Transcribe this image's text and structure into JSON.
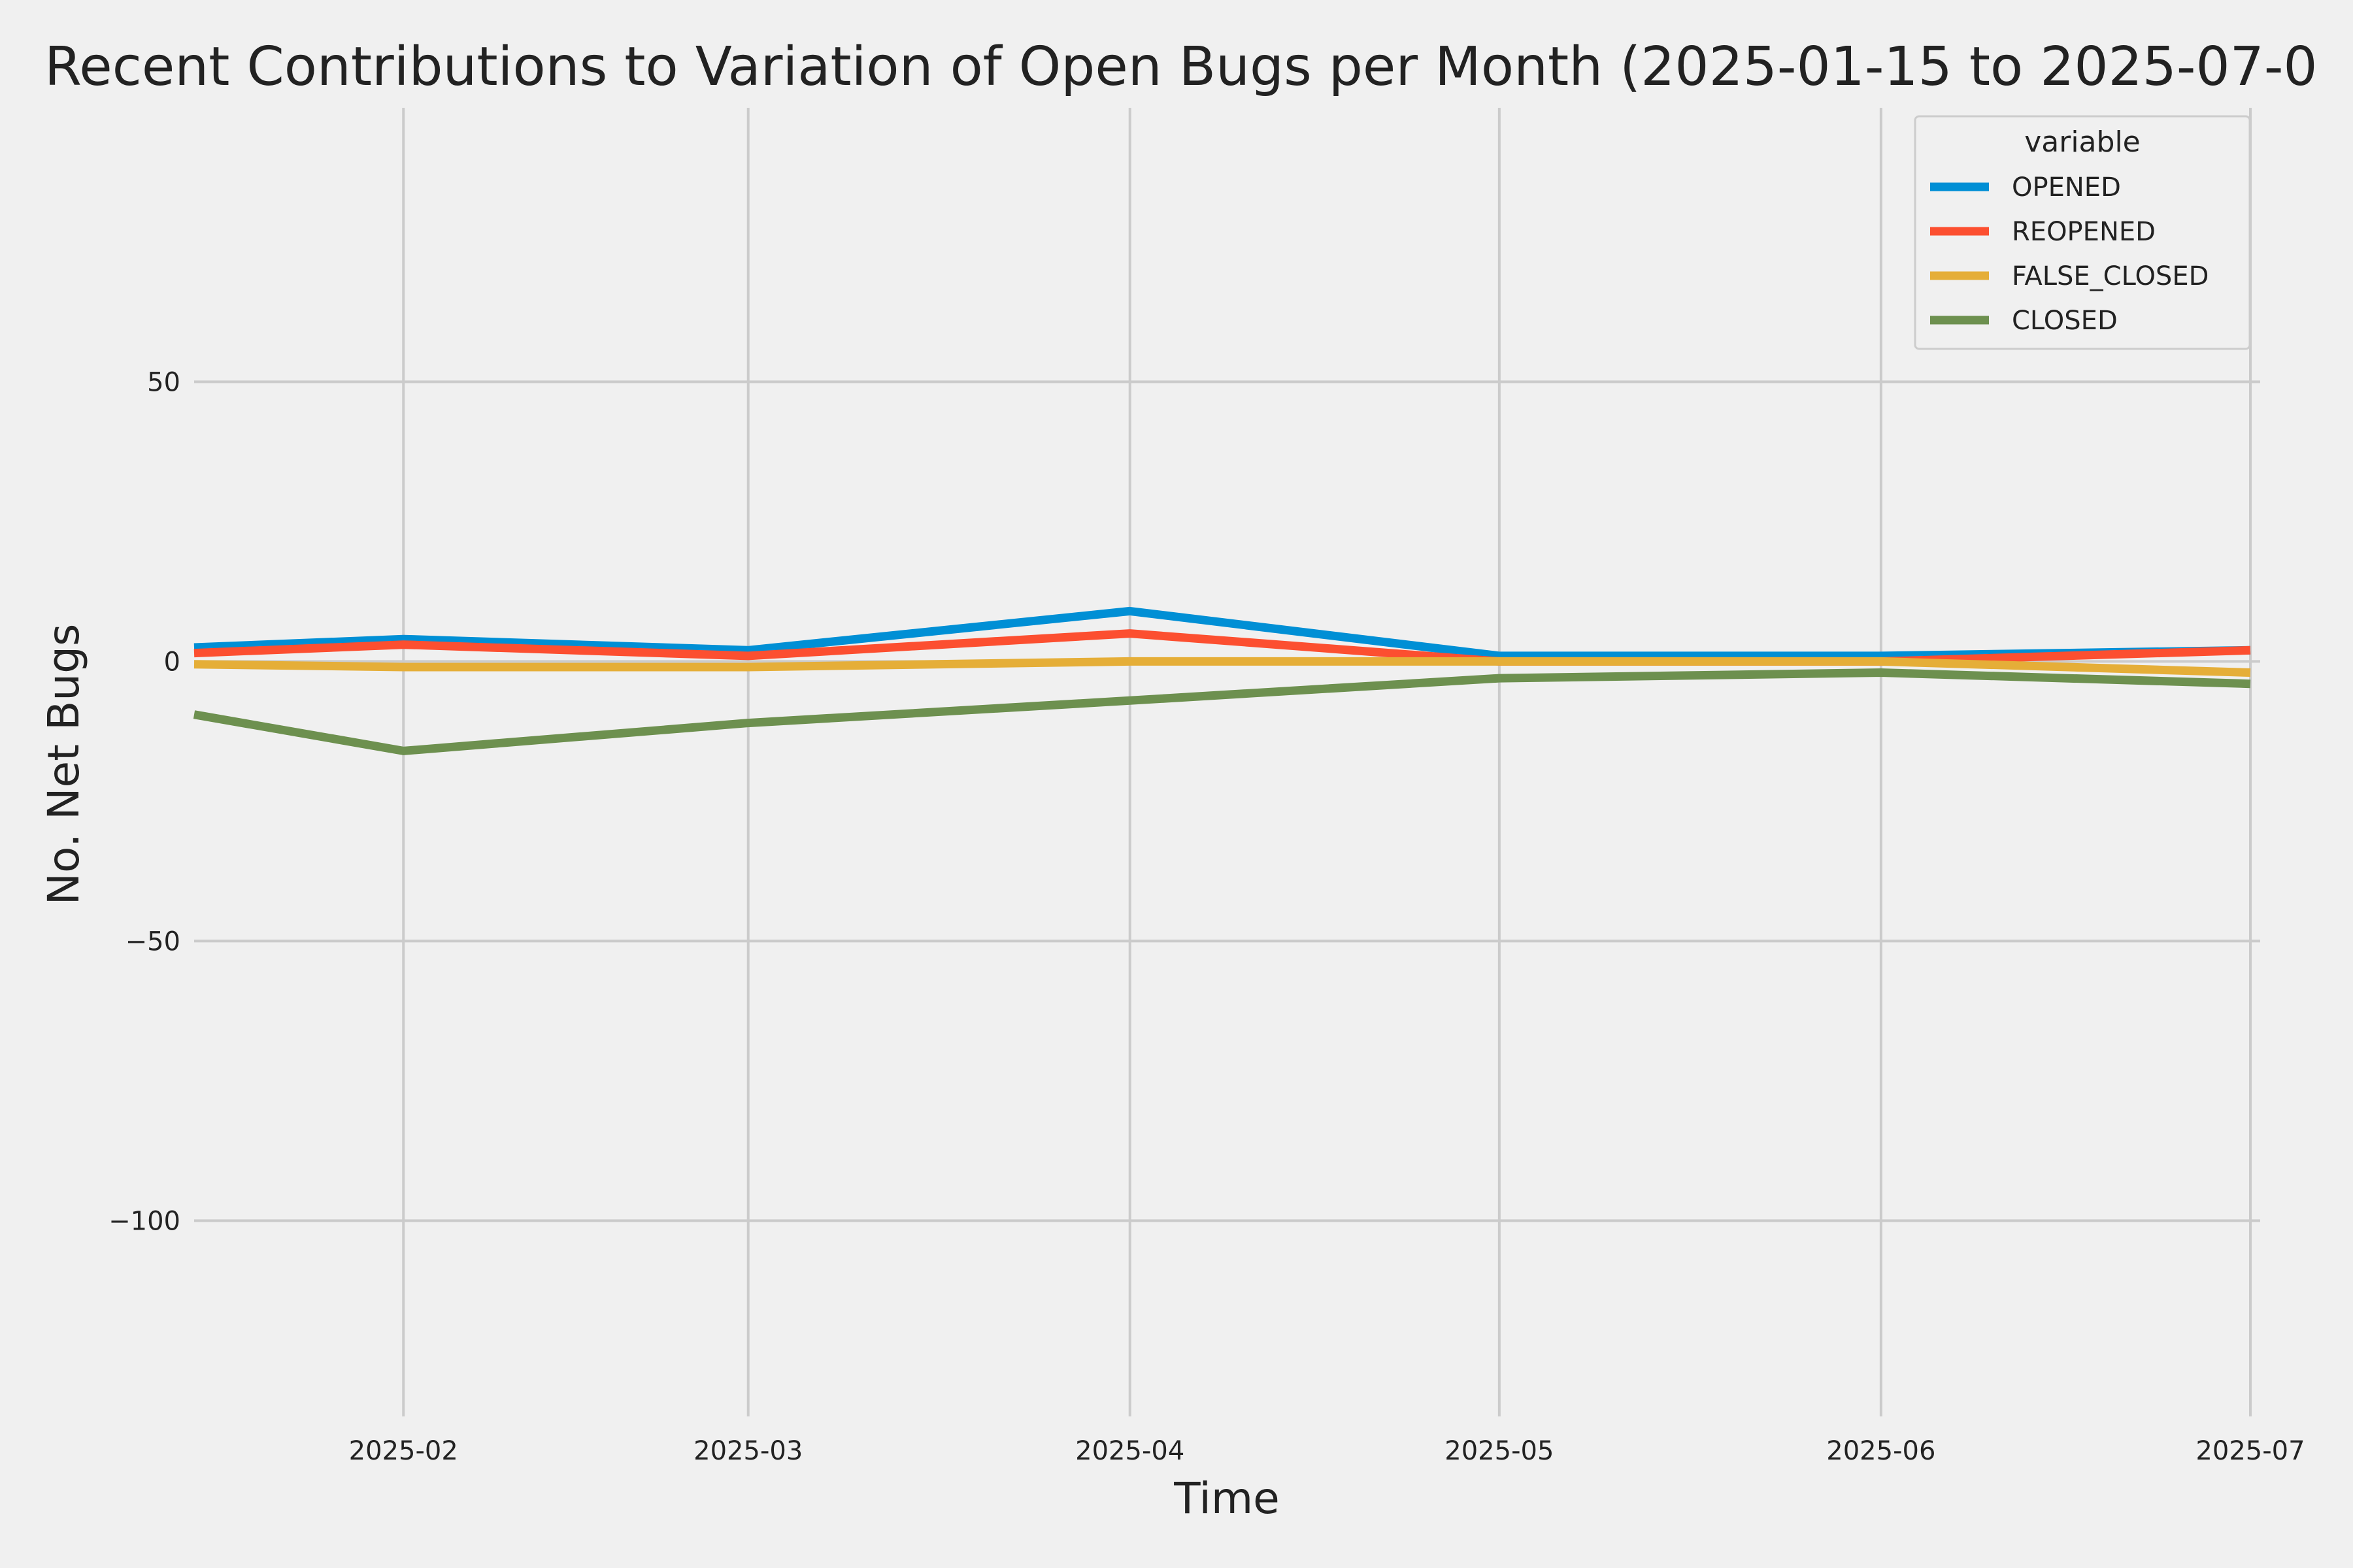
{
  "chart_data": {
    "type": "line",
    "title": "Recent Contributions to Variation of Open Bugs per Month (2025-01-15 to 2025-07-0",
    "xlabel": "Time",
    "ylabel": "No. Net Bugs",
    "x": [
      "2025-01-15",
      "2025-02-01",
      "2025-03-01",
      "2025-04-01",
      "2025-05-01",
      "2025-06-01",
      "2025-07-01"
    ],
    "x_ticks": [
      "2025-02",
      "2025-03",
      "2025-04",
      "2025-05",
      "2025-06",
      "2025-07"
    ],
    "xlim": [
      "2025-01-15",
      "2025-07-01"
    ],
    "y_ticks": [
      50,
      0,
      -50,
      -100
    ],
    "y_tick_labels": [
      "50",
      "0",
      "−50",
      "−100"
    ],
    "ylim": [
      -135,
      99
    ],
    "grid": true,
    "legend": {
      "title": "variable",
      "placement": "top-right"
    },
    "series": [
      {
        "name": "OPENED",
        "color": "#008fd5",
        "values": [
          2.5,
          4,
          2,
          9,
          1,
          1,
          2
        ]
      },
      {
        "name": "REOPENED",
        "color": "#fc4f30",
        "values": [
          1.5,
          3,
          1,
          5,
          0,
          0,
          2
        ]
      },
      {
        "name": "FALSE_CLOSED",
        "color": "#e5ae38",
        "values": [
          -0.5,
          -1,
          -1,
          0,
          0,
          0,
          -2
        ]
      },
      {
        "name": "CLOSED",
        "color": "#6d904f",
        "values": [
          -9.5,
          -16,
          -11,
          -7,
          -3,
          -2,
          -4
        ]
      }
    ]
  }
}
